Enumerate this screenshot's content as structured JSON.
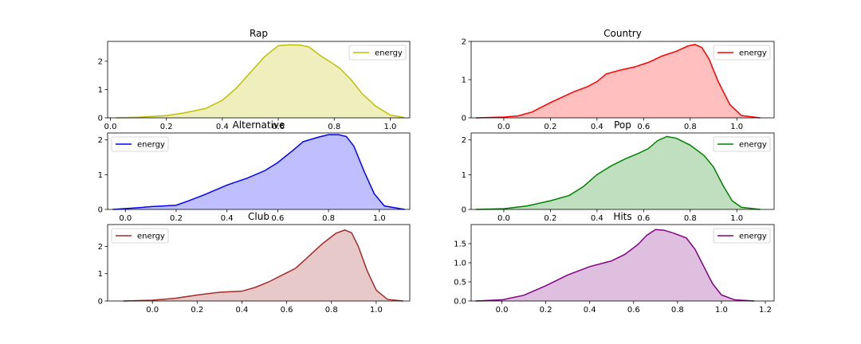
{
  "chart_data": [
    {
      "type": "area",
      "title": "Rap",
      "color": "#bfbf00",
      "fill": "#efefbd",
      "legend": {
        "label": "energy",
        "placement": "upper right"
      },
      "xlim": [
        -0.01,
        1.07
      ],
      "ylim": [
        0,
        2.7
      ],
      "xticks": [
        0.0,
        0.2,
        0.4,
        0.6,
        0.8,
        1.0
      ],
      "xtick_labels": [
        "0.0",
        "0.2",
        "0.4",
        "0.6",
        "0.8",
        "1.0"
      ],
      "yticks": [
        0,
        1,
        2
      ],
      "ytick_labels": [
        "0",
        "1",
        "2"
      ],
      "points": [
        [
          0.02,
          0.0
        ],
        [
          0.1,
          0.02
        ],
        [
          0.2,
          0.08
        ],
        [
          0.26,
          0.17
        ],
        [
          0.34,
          0.33
        ],
        [
          0.4,
          0.62
        ],
        [
          0.45,
          1.05
        ],
        [
          0.5,
          1.6
        ],
        [
          0.55,
          2.15
        ],
        [
          0.6,
          2.55
        ],
        [
          0.64,
          2.58
        ],
        [
          0.68,
          2.57
        ],
        [
          0.71,
          2.5
        ],
        [
          0.75,
          2.2
        ],
        [
          0.79,
          1.95
        ],
        [
          0.82,
          1.75
        ],
        [
          0.86,
          1.35
        ],
        [
          0.9,
          0.85
        ],
        [
          0.95,
          0.4
        ],
        [
          1.0,
          0.1
        ],
        [
          1.05,
          0.01
        ]
      ]
    },
    {
      "type": "area",
      "title": "Country",
      "color": "#ff0000",
      "fill": "#ffbfbf",
      "legend": {
        "label": "energy",
        "placement": "upper right"
      },
      "xlim": [
        -0.14,
        1.16
      ],
      "ylim": [
        0,
        2.0
      ],
      "xticks": [
        0.0,
        0.2,
        0.4,
        0.6,
        0.8,
        1.0
      ],
      "xtick_labels": [
        "0.0",
        "0.2",
        "0.4",
        "0.6",
        "0.8",
        "1.0"
      ],
      "yticks": [
        0,
        1,
        2
      ],
      "ytick_labels": [
        "0",
        "1",
        "2"
      ],
      "points": [
        [
          -0.12,
          0.0
        ],
        [
          0.0,
          0.02
        ],
        [
          0.06,
          0.05
        ],
        [
          0.12,
          0.15
        ],
        [
          0.2,
          0.4
        ],
        [
          0.3,
          0.68
        ],
        [
          0.36,
          0.82
        ],
        [
          0.4,
          0.95
        ],
        [
          0.44,
          1.15
        ],
        [
          0.5,
          1.25
        ],
        [
          0.56,
          1.33
        ],
        [
          0.62,
          1.45
        ],
        [
          0.68,
          1.62
        ],
        [
          0.74,
          1.74
        ],
        [
          0.79,
          1.88
        ],
        [
          0.82,
          1.92
        ],
        [
          0.85,
          1.84
        ],
        [
          0.88,
          1.55
        ],
        [
          0.92,
          0.95
        ],
        [
          0.97,
          0.35
        ],
        [
          1.02,
          0.06
        ],
        [
          1.1,
          0.0
        ]
      ]
    },
    {
      "type": "area",
      "title": "Alternative",
      "color": "#0000ff",
      "fill": "#bfbfff",
      "legend": {
        "label": "energy",
        "placement": "upper left"
      },
      "xlim": [
        -0.07,
        1.12
      ],
      "ylim": [
        0,
        2.2
      ],
      "xticks": [
        0.0,
        0.2,
        0.4,
        0.6,
        0.8,
        1.0
      ],
      "xtick_labels": [
        "0.0",
        "0.2",
        "0.4",
        "0.6",
        "0.8",
        "1.0"
      ],
      "yticks": [
        0,
        1,
        2
      ],
      "ytick_labels": [
        "0",
        "1",
        "2"
      ],
      "points": [
        [
          -0.05,
          0.0
        ],
        [
          0.05,
          0.05
        ],
        [
          0.1,
          0.08
        ],
        [
          0.2,
          0.12
        ],
        [
          0.25,
          0.25
        ],
        [
          0.32,
          0.45
        ],
        [
          0.4,
          0.7
        ],
        [
          0.48,
          0.9
        ],
        [
          0.55,
          1.12
        ],
        [
          0.6,
          1.35
        ],
        [
          0.66,
          1.7
        ],
        [
          0.7,
          1.95
        ],
        [
          0.76,
          2.08
        ],
        [
          0.8,
          2.15
        ],
        [
          0.84,
          2.15
        ],
        [
          0.87,
          2.1
        ],
        [
          0.9,
          1.82
        ],
        [
          0.94,
          1.1
        ],
        [
          0.98,
          0.45
        ],
        [
          1.02,
          0.1
        ],
        [
          1.1,
          0.0
        ]
      ]
    },
    {
      "type": "area",
      "title": "Pop",
      "color": "#008000",
      "fill": "#bfdfbf",
      "legend": {
        "label": "energy",
        "placement": "upper right"
      },
      "xlim": [
        -0.14,
        1.16
      ],
      "ylim": [
        0,
        2.2
      ],
      "xticks": [
        0.0,
        0.2,
        0.4,
        0.6,
        0.8,
        1.0
      ],
      "xtick_labels": [
        "0.0",
        "0.2",
        "0.4",
        "0.6",
        "0.8",
        "1.0"
      ],
      "yticks": [
        0,
        1,
        2
      ],
      "ytick_labels": [
        "0",
        "1",
        "2"
      ],
      "points": [
        [
          -0.12,
          0.0
        ],
        [
          0.0,
          0.02
        ],
        [
          0.1,
          0.1
        ],
        [
          0.2,
          0.25
        ],
        [
          0.28,
          0.4
        ],
        [
          0.34,
          0.65
        ],
        [
          0.4,
          1.0
        ],
        [
          0.46,
          1.25
        ],
        [
          0.52,
          1.45
        ],
        [
          0.58,
          1.62
        ],
        [
          0.62,
          1.75
        ],
        [
          0.66,
          1.98
        ],
        [
          0.7,
          2.1
        ],
        [
          0.74,
          2.05
        ],
        [
          0.8,
          1.85
        ],
        [
          0.86,
          1.55
        ],
        [
          0.9,
          1.22
        ],
        [
          0.94,
          0.7
        ],
        [
          0.98,
          0.25
        ],
        [
          1.02,
          0.06
        ],
        [
          1.1,
          0.0
        ]
      ]
    },
    {
      "type": "area",
      "title": "Club",
      "color": "#a52a2a",
      "fill": "#e8c9c9",
      "legend": {
        "label": "energy",
        "placement": "upper left"
      },
      "xlim": [
        -0.2,
        1.15
      ],
      "ylim": [
        0,
        2.8
      ],
      "xticks": [
        0.0,
        0.2,
        0.4,
        0.6,
        0.8,
        1.0
      ],
      "xtick_labels": [
        "0.0",
        "0.2",
        "0.4",
        "0.6",
        "0.8",
        "1.0"
      ],
      "yticks": [
        0,
        1,
        2
      ],
      "ytick_labels": [
        "0",
        "1",
        "2"
      ],
      "points": [
        [
          -0.13,
          0.0
        ],
        [
          0.0,
          0.03
        ],
        [
          0.1,
          0.1
        ],
        [
          0.2,
          0.22
        ],
        [
          0.3,
          0.32
        ],
        [
          0.4,
          0.36
        ],
        [
          0.46,
          0.5
        ],
        [
          0.52,
          0.7
        ],
        [
          0.58,
          0.95
        ],
        [
          0.64,
          1.2
        ],
        [
          0.7,
          1.65
        ],
        [
          0.76,
          2.1
        ],
        [
          0.82,
          2.48
        ],
        [
          0.86,
          2.6
        ],
        [
          0.89,
          2.5
        ],
        [
          0.92,
          2.0
        ],
        [
          0.96,
          1.1
        ],
        [
          1.0,
          0.4
        ],
        [
          1.05,
          0.06
        ],
        [
          1.12,
          0.0
        ]
      ]
    },
    {
      "type": "area",
      "title": "Hits",
      "color": "#800080",
      "fill": "#dfbfdf",
      "legend": {
        "label": "energy",
        "placement": "upper right"
      },
      "xlim": [
        -0.14,
        1.24
      ],
      "ylim": [
        0,
        2.0
      ],
      "xticks": [
        0.0,
        0.2,
        0.4,
        0.6,
        0.8,
        1.0,
        1.2
      ],
      "xtick_labels": [
        "0.0",
        "0.2",
        "0.4",
        "0.6",
        "0.8",
        "1.0",
        "1.2"
      ],
      "yticks": [
        0,
        0.5,
        1.0,
        1.5
      ],
      "ytick_labels": [
        "0.0",
        "0.5",
        "1.0",
        "1.5"
      ],
      "points": [
        [
          -0.12,
          0.0
        ],
        [
          0.0,
          0.03
        ],
        [
          0.1,
          0.15
        ],
        [
          0.2,
          0.4
        ],
        [
          0.3,
          0.68
        ],
        [
          0.4,
          0.9
        ],
        [
          0.5,
          1.05
        ],
        [
          0.56,
          1.22
        ],
        [
          0.62,
          1.48
        ],
        [
          0.66,
          1.72
        ],
        [
          0.7,
          1.87
        ],
        [
          0.74,
          1.85
        ],
        [
          0.78,
          1.78
        ],
        [
          0.84,
          1.65
        ],
        [
          0.88,
          1.35
        ],
        [
          0.92,
          0.9
        ],
        [
          0.96,
          0.45
        ],
        [
          1.0,
          0.16
        ],
        [
          1.06,
          0.03
        ],
        [
          1.15,
          0.0
        ]
      ]
    }
  ]
}
